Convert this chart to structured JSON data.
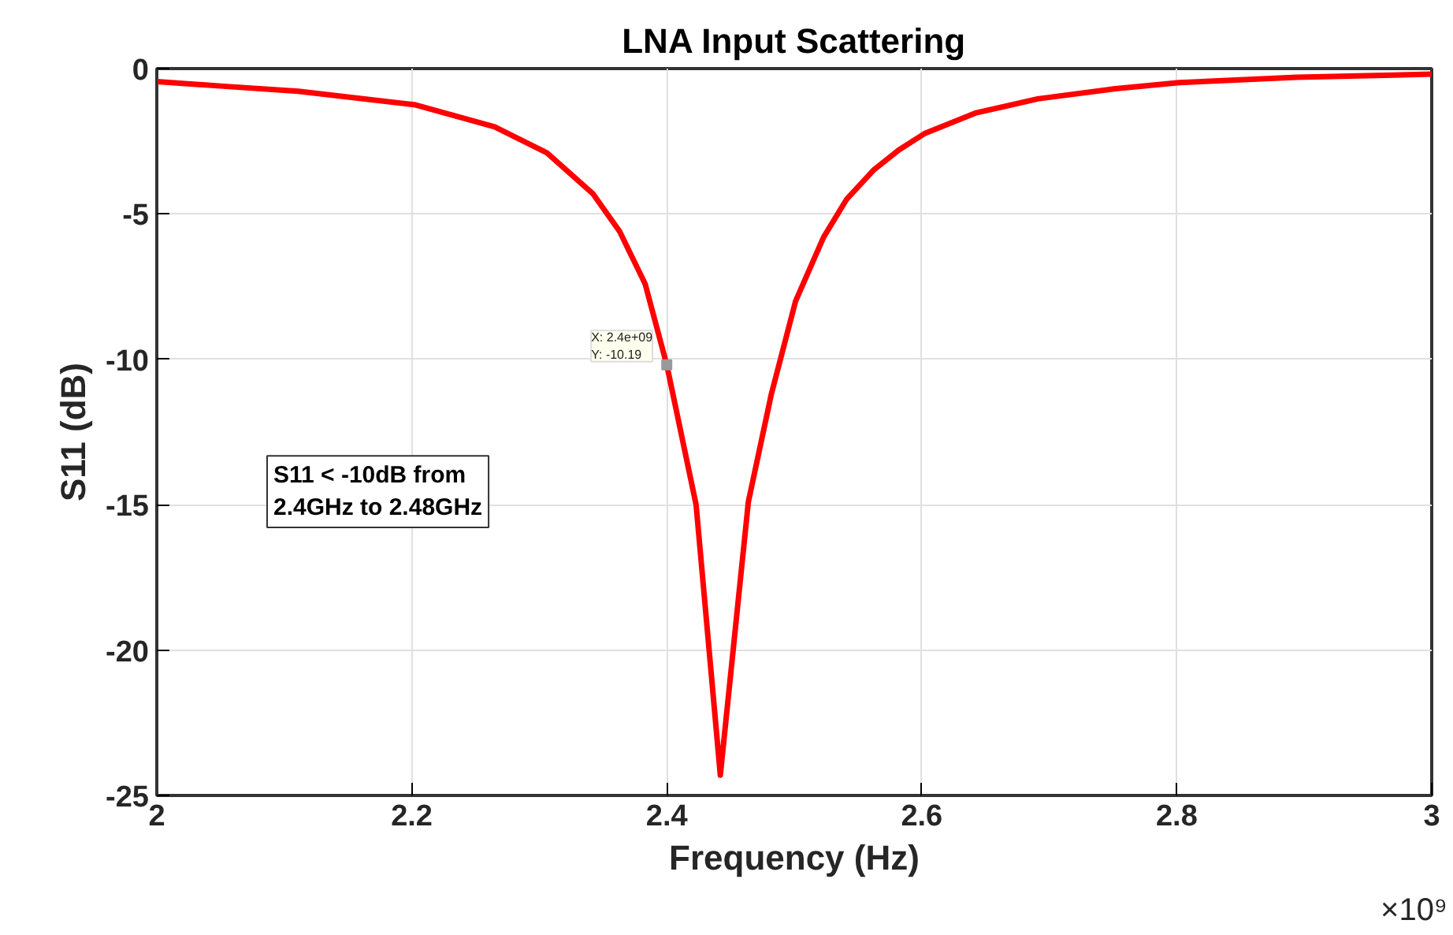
{
  "chart_data": {
    "type": "line",
    "title": "LNA Input Scattering",
    "xlabel": "Frequency (Hz)",
    "ylabel": "S11 (dB)",
    "x": [
      2.0,
      2.05,
      2.111,
      2.203,
      2.265,
      2.306,
      2.342,
      2.363,
      2.383,
      2.4,
      2.423,
      2.442,
      2.464,
      2.482,
      2.501,
      2.523,
      2.541,
      2.562,
      2.582,
      2.602,
      2.642,
      2.691,
      2.752,
      2.802,
      2.894,
      3.0
    ],
    "series": [
      {
        "color": "#ff0000",
        "values": [
          -0.45,
          -0.6,
          -0.78,
          -1.25,
          -2.0,
          -2.9,
          -4.3,
          -5.6,
          -7.4,
          -10.19,
          -15.0,
          -24.3,
          -14.9,
          -11.2,
          -8.0,
          -5.8,
          -4.5,
          -3.5,
          -2.8,
          -2.24,
          -1.53,
          -1.04,
          -0.69,
          -0.48,
          -0.3,
          -0.19
        ]
      }
    ],
    "xlim": [
      2.0,
      3.0
    ],
    "xticks": [
      2,
      2.2,
      2.4,
      2.6,
      2.8,
      3
    ],
    "ylim": [
      -25,
      0
    ],
    "yticks": [
      0,
      -5,
      -10,
      -15,
      -20,
      -25
    ],
    "grid": true,
    "marker": "none",
    "line_style": "solid",
    "annotations": [
      {
        "text": "X: 2.4e+09\nY: -10.19",
        "x": 2.4,
        "y": -10.19
      },
      "S11 < -10dB from\n2.4GHz to 2.48GHz",
      "×10⁹"
    ]
  }
}
